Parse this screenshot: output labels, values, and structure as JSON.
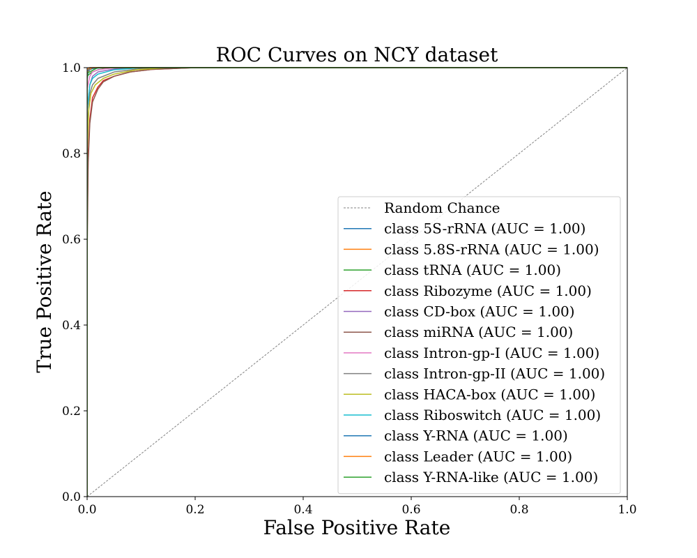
{
  "chart_data": {
    "type": "line",
    "title": "ROC Curves on NCY dataset",
    "xlabel": "False Positive Rate",
    "ylabel": "True Positive Rate",
    "xlim": [
      0.0,
      1.0
    ],
    "ylim": [
      0.0,
      1.0
    ],
    "x_ticks": [
      "0.0",
      "0.2",
      "0.4",
      "0.6",
      "0.8",
      "1.0"
    ],
    "y_ticks": [
      "0.0",
      "0.2",
      "0.4",
      "0.6",
      "0.8",
      "1.0"
    ],
    "grid": false,
    "legend_position": "lower-right",
    "reference_line": {
      "name": "Random Chance",
      "color": "#808080",
      "style": "dashed",
      "points": [
        [
          0,
          0
        ],
        [
          1,
          1
        ]
      ]
    },
    "series": [
      {
        "name": "class 5S-rRNA (AUC = 1.00)",
        "color": "#1f77b4",
        "points": [
          [
            0,
            0
          ],
          [
            0,
            0.97
          ],
          [
            0.002,
            0.99
          ],
          [
            0.005,
            0.995
          ],
          [
            0.01,
            0.998
          ],
          [
            0.03,
            1.0
          ],
          [
            1,
            1
          ]
        ]
      },
      {
        "name": "class 5.8S-rRNA (AUC = 1.00)",
        "color": "#ff7f0e",
        "points": [
          [
            0,
            0
          ],
          [
            0,
            0.985
          ],
          [
            0.003,
            0.995
          ],
          [
            0.01,
            1.0
          ],
          [
            1,
            1
          ]
        ]
      },
      {
        "name": "class tRNA (AUC = 1.00)",
        "color": "#2ca02c",
        "points": [
          [
            0,
            0
          ],
          [
            0,
            0.98
          ],
          [
            0.004,
            0.985
          ],
          [
            0.01,
            0.99
          ],
          [
            0.02,
            0.995
          ],
          [
            0.04,
            1.0
          ],
          [
            1,
            1
          ]
        ]
      },
      {
        "name": "class Ribozyme (AUC = 1.00)",
        "color": "#d62728",
        "points": [
          [
            0,
            0
          ],
          [
            0,
            0.6
          ],
          [
            0.002,
            0.8
          ],
          [
            0.005,
            0.88
          ],
          [
            0.01,
            0.93
          ],
          [
            0.02,
            0.955
          ],
          [
            0.03,
            0.97
          ],
          [
            0.05,
            0.98
          ],
          [
            0.08,
            0.99
          ],
          [
            0.12,
            0.996
          ],
          [
            0.2,
            1.0
          ],
          [
            1,
            1
          ]
        ]
      },
      {
        "name": "class CD-box (AUC = 1.00)",
        "color": "#9467bd",
        "points": [
          [
            0,
            0
          ],
          [
            0,
            0.9
          ],
          [
            0.005,
            0.96
          ],
          [
            0.01,
            0.98
          ],
          [
            0.02,
            0.99
          ],
          [
            0.05,
            0.997
          ],
          [
            0.1,
            1.0
          ],
          [
            1,
            1
          ]
        ]
      },
      {
        "name": "class miRNA (AUC = 1.00)",
        "color": "#8c564b",
        "points": [
          [
            0,
            0
          ],
          [
            0,
            0.55
          ],
          [
            0.002,
            0.78
          ],
          [
            0.005,
            0.87
          ],
          [
            0.01,
            0.92
          ],
          [
            0.02,
            0.95
          ],
          [
            0.03,
            0.967
          ],
          [
            0.05,
            0.98
          ],
          [
            0.08,
            0.99
          ],
          [
            0.12,
            0.996
          ],
          [
            0.2,
            1.0
          ],
          [
            1,
            1
          ]
        ]
      },
      {
        "name": "class Intron-gp-I (AUC = 1.00)",
        "color": "#e377c2",
        "points": [
          [
            0,
            0
          ],
          [
            0,
            0.95
          ],
          [
            0.005,
            0.98
          ],
          [
            0.01,
            0.99
          ],
          [
            0.02,
            0.995
          ],
          [
            0.05,
            1.0
          ],
          [
            1,
            1
          ]
        ]
      },
      {
        "name": "class Intron-gp-II (AUC = 1.00)",
        "color": "#7f7f7f",
        "points": [
          [
            0,
            0
          ],
          [
            0,
            0.85
          ],
          [
            0.005,
            0.94
          ],
          [
            0.01,
            0.96
          ],
          [
            0.02,
            0.975
          ],
          [
            0.05,
            0.99
          ],
          [
            0.1,
            0.998
          ],
          [
            0.15,
            1.0
          ],
          [
            1,
            1
          ]
        ]
      },
      {
        "name": "class HACA-box (AUC = 1.00)",
        "color": "#bcbd22",
        "points": [
          [
            0,
            0
          ],
          [
            0,
            0.8
          ],
          [
            0.003,
            0.9
          ],
          [
            0.007,
            0.94
          ],
          [
            0.015,
            0.96
          ],
          [
            0.03,
            0.975
          ],
          [
            0.05,
            0.985
          ],
          [
            0.09,
            0.995
          ],
          [
            0.15,
            1.0
          ],
          [
            1,
            1
          ]
        ]
      },
      {
        "name": "class Riboswitch (AUC = 1.00)",
        "color": "#17becf",
        "points": [
          [
            0,
            0
          ],
          [
            0,
            0.9
          ],
          [
            0.005,
            0.96
          ],
          [
            0.01,
            0.975
          ],
          [
            0.02,
            0.985
          ],
          [
            0.05,
            0.995
          ],
          [
            0.1,
            1.0
          ],
          [
            1,
            1
          ]
        ]
      },
      {
        "name": "class Y-RNA (AUC = 1.00)",
        "color": "#1f77b4",
        "points": [
          [
            0,
            0
          ],
          [
            0,
            0.99
          ],
          [
            0.005,
            1.0
          ],
          [
            1,
            1
          ]
        ]
      },
      {
        "name": "class Leader (AUC = 1.00)",
        "color": "#ff7f0e",
        "points": [
          [
            0,
            0
          ],
          [
            0,
            0.995
          ],
          [
            0.004,
            1.0
          ],
          [
            1,
            1
          ]
        ]
      },
      {
        "name": "class Y-RNA-like (AUC = 1.00)",
        "color": "#2ca02c",
        "points": [
          [
            0,
            0
          ],
          [
            0,
            0.988
          ],
          [
            0.005,
            0.99
          ],
          [
            0.012,
            0.995
          ],
          [
            0.02,
            1.0
          ],
          [
            1,
            1
          ]
        ]
      }
    ]
  }
}
